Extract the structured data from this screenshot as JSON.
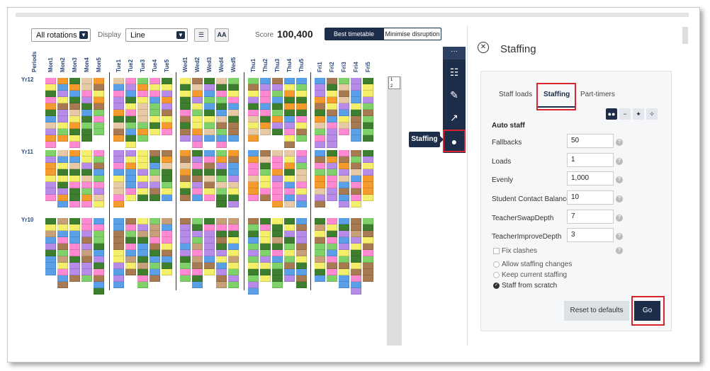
{
  "toolbar": {
    "rotations": "All rotations",
    "display_label": "Display",
    "display_value": "Line",
    "aa_label": "AA",
    "score_label": "Score",
    "score_value": "100,400",
    "best_timetable": "Best timetable",
    "minimise_disruption": "Minimise disruption"
  },
  "grid": {
    "periods_label": "Periods",
    "columns": [
      "Mon1",
      "Mon2",
      "Mon3",
      "Mon4",
      "Mon5",
      "Tue1",
      "Tue2",
      "Tue3",
      "Tue4",
      "Tue5",
      "Wed1",
      "Wed2",
      "Wed3",
      "Wed4",
      "Wed5",
      "Thu1",
      "Thu2",
      "Thu3",
      "Thu4",
      "Thu5",
      "Fri1",
      "Fri2",
      "Fri3",
      "Fri4",
      "Fri5"
    ],
    "years": [
      "Yr12",
      "Yr11",
      "Yr10"
    ]
  },
  "rail": {
    "tooltip": "Staffing",
    "icons": [
      "more-icon",
      "sliders-icon",
      "wrench-icon",
      "chart-icon",
      "person-icon"
    ]
  },
  "panel": {
    "title": "Staffing",
    "tabs": [
      "Staff loads",
      "Staffing",
      "Part-timers"
    ],
    "section_title": "Auto staff",
    "fields": [
      {
        "label": "Fallbacks",
        "value": "50"
      },
      {
        "label": "Loads",
        "value": "1"
      },
      {
        "label": "Evenly",
        "value": "1,000"
      },
      {
        "label": "Student Contact Balance",
        "value": "10"
      },
      {
        "label": "TeacherSwapDepth",
        "value": "7"
      },
      {
        "label": "TeacherImproveDepth",
        "value": "3"
      }
    ],
    "fix_clashes": "Fix clashes",
    "options": [
      "Allow staffing changes",
      "Keep current staffing",
      "Staff from scratch"
    ],
    "reset_button": "Reset to defaults",
    "go_button": "Go"
  },
  "colors": {
    "navy": "#1d2e4a",
    "highlight": "#d9232d"
  }
}
